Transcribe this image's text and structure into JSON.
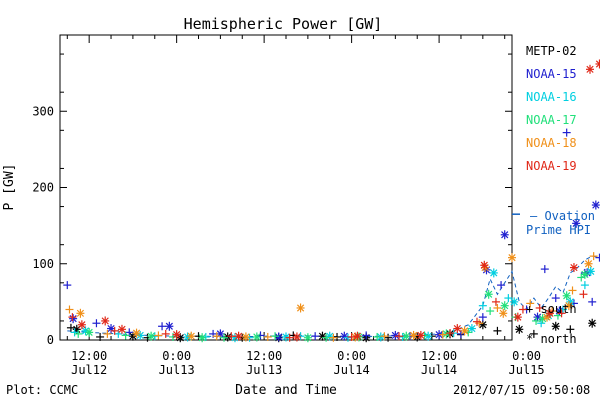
{
  "chart_data": {
    "type": "scatter",
    "title": "Hemispheric Power [GW]",
    "ylabel": "P [GW]",
    "xlabel": "Date and Time",
    "xrange_hours": [
      8,
      70
    ],
    "ylim": [
      0,
      400
    ],
    "yticks": [
      0,
      100,
      200,
      300
    ],
    "xticks": [
      {
        "hours": 12,
        "label1": "12:00",
        "label2": "Jul12"
      },
      {
        "hours": 24,
        "label1": "0:00",
        "label2": "Jul13"
      },
      {
        "hours": 36,
        "label1": "12:00",
        "label2": "Jul13"
      },
      {
        "hours": 48,
        "label1": "0:00",
        "label2": "Jul14"
      },
      {
        "hours": 60,
        "label1": "12:00",
        "label2": "Jul14"
      },
      {
        "hours": 72,
        "label1": "0:00",
        "label2": "Jul15"
      }
    ],
    "series": [
      {
        "name": "METP-02",
        "color": "#000000",
        "south": [
          [
            9.5,
            16
          ],
          [
            13.5,
            4
          ],
          [
            20.0,
            3
          ],
          [
            27.0,
            5
          ],
          [
            33.0,
            3
          ],
          [
            40.0,
            6
          ],
          [
            46.0,
            4
          ],
          [
            53.0,
            3
          ],
          [
            59.0,
            5
          ],
          [
            63.0,
            7
          ],
          [
            68.0,
            12
          ],
          [
            73.0,
            8
          ],
          [
            78.0,
            14
          ]
        ],
        "north": [
          [
            10.3,
            14
          ],
          [
            18.0,
            5
          ],
          [
            24.5,
            3
          ],
          [
            31.0,
            4
          ],
          [
            38.0,
            3
          ],
          [
            44.0,
            5
          ],
          [
            50.0,
            3
          ],
          [
            57.0,
            4
          ],
          [
            61.5,
            8
          ],
          [
            66.0,
            20
          ],
          [
            71.0,
            14
          ],
          [
            76.0,
            18
          ],
          [
            81.0,
            22
          ]
        ]
      },
      {
        "name": "NOAA-15",
        "color": "#1f1fcf",
        "south": [
          [
            9.0,
            72
          ],
          [
            13.0,
            22
          ],
          [
            17.5,
            10
          ],
          [
            22.0,
            18
          ],
          [
            29.0,
            8
          ],
          [
            35.5,
            6
          ],
          [
            43.0,
            5
          ],
          [
            50.0,
            6
          ],
          [
            56.0,
            5
          ],
          [
            63.0,
            8
          ],
          [
            66.0,
            30
          ],
          [
            68.5,
            72
          ],
          [
            72.0,
            40
          ],
          [
            74.5,
            93
          ],
          [
            76.0,
            55
          ],
          [
            77.5,
            272
          ],
          [
            78.5,
            48
          ],
          [
            80.0,
            88
          ],
          [
            81.0,
            50
          ],
          [
            82.0,
            108
          ]
        ],
        "north": [
          [
            9.8,
            28
          ],
          [
            15.0,
            15
          ],
          [
            23.0,
            18
          ],
          [
            30.0,
            8
          ],
          [
            38.0,
            4
          ],
          [
            47.0,
            5
          ],
          [
            54.0,
            6
          ],
          [
            60.0,
            7
          ],
          [
            66.5,
            92
          ],
          [
            69.0,
            138
          ],
          [
            73.5,
            30
          ],
          [
            76.5,
            38
          ],
          [
            78.8,
            153
          ],
          [
            80.3,
            88
          ],
          [
            81.5,
            177
          ]
        ]
      },
      {
        "name": "NOAA-16",
        "color": "#00cfe0",
        "south": [
          [
            10.0,
            10
          ],
          [
            16.0,
            8
          ],
          [
            21.0,
            5
          ],
          [
            28.0,
            4
          ],
          [
            34.0,
            3
          ],
          [
            41.0,
            5
          ],
          [
            47.5,
            3
          ],
          [
            55.0,
            4
          ],
          [
            62.0,
            9
          ],
          [
            66.0,
            45
          ],
          [
            69.5,
            55
          ],
          [
            74.0,
            22
          ],
          [
            77.0,
            40
          ],
          [
            80.0,
            72
          ]
        ],
        "north": [
          [
            11.5,
            12
          ],
          [
            19.0,
            6
          ],
          [
            25.5,
            4
          ],
          [
            32.0,
            3
          ],
          [
            39.0,
            4
          ],
          [
            45.0,
            5
          ],
          [
            52.0,
            4
          ],
          [
            58.5,
            5
          ],
          [
            64.5,
            15
          ],
          [
            67.5,
            88
          ],
          [
            70.3,
            50
          ],
          [
            75.0,
            32
          ],
          [
            78.0,
            50
          ],
          [
            80.8,
            90
          ]
        ]
      },
      {
        "name": "NOAA-17",
        "color": "#20e07a",
        "south": [
          [
            10.5,
            8
          ],
          [
            17.0,
            6
          ],
          [
            23.5,
            4
          ],
          [
            30.5,
            3
          ],
          [
            37.5,
            5
          ],
          [
            44.5,
            3
          ],
          [
            51.5,
            4
          ],
          [
            58.0,
            6
          ],
          [
            64.0,
            10
          ],
          [
            67.0,
            38
          ],
          [
            70.5,
            30
          ],
          [
            73.3,
            25
          ],
          [
            76.3,
            32
          ],
          [
            79.5,
            82
          ]
        ],
        "north": [
          [
            12.0,
            10
          ],
          [
            20.5,
            5
          ],
          [
            27.5,
            3
          ],
          [
            35.0,
            4
          ],
          [
            42.0,
            3
          ],
          [
            49.0,
            4
          ],
          [
            55.5,
            5
          ],
          [
            61.0,
            8
          ],
          [
            66.8,
            60
          ],
          [
            69.0,
            45
          ],
          [
            74.2,
            28
          ],
          [
            77.5,
            58
          ],
          [
            80.0,
            86
          ]
        ]
      },
      {
        "name": "NOAA-18",
        "color": "#f0901a",
        "south": [
          [
            9.3,
            40
          ],
          [
            14.5,
            8
          ],
          [
            21.5,
            6
          ],
          [
            29.5,
            5
          ],
          [
            36.5,
            4
          ],
          [
            45.5,
            3
          ],
          [
            52.5,
            5
          ],
          [
            60.5,
            7
          ],
          [
            65.5,
            22
          ],
          [
            68.0,
            42
          ],
          [
            72.5,
            48
          ],
          [
            75.5,
            38
          ],
          [
            78.3,
            65
          ],
          [
            81.2,
            110
          ]
        ],
        "north": [
          [
            10.8,
            35
          ],
          [
            18.5,
            9
          ],
          [
            26.0,
            5
          ],
          [
            33.5,
            4
          ],
          [
            41.0,
            42
          ],
          [
            48.5,
            4
          ],
          [
            56.5,
            6
          ],
          [
            63.5,
            12
          ],
          [
            66.3,
            95
          ],
          [
            68.8,
            35
          ],
          [
            70.0,
            108
          ],
          [
            74.8,
            30
          ],
          [
            77.8,
            45
          ],
          [
            80.5,
            100
          ]
        ]
      },
      {
        "name": "NOAA-19",
        "color": "#e02818",
        "south": [
          [
            9.7,
            30
          ],
          [
            15.5,
            12
          ],
          [
            22.5,
            8
          ],
          [
            31.5,
            5
          ],
          [
            39.5,
            3
          ],
          [
            48.0,
            4
          ],
          [
            54.5,
            5
          ],
          [
            61.5,
            9
          ],
          [
            65.2,
            24
          ],
          [
            67.8,
            50
          ],
          [
            71.5,
            40
          ],
          [
            73.8,
            42
          ],
          [
            76.8,
            35
          ],
          [
            79.8,
            60
          ]
        ],
        "north": [
          [
            11.0,
            20
          ],
          [
            14.2,
            25
          ],
          [
            16.5,
            14
          ],
          [
            24.0,
            7
          ],
          [
            32.5,
            5
          ],
          [
            40.5,
            4
          ],
          [
            48.8,
            5
          ],
          [
            57.5,
            6
          ],
          [
            62.5,
            15
          ],
          [
            66.2,
            98
          ],
          [
            70.8,
            30
          ],
          [
            75.2,
            35
          ],
          [
            78.5,
            95
          ],
          [
            80.7,
            355
          ],
          [
            82.0,
            362
          ]
        ]
      }
    ],
    "ovation": {
      "label1": "— Ovation",
      "label2": "Prime HPI",
      "color": "#1060c0",
      "marker_y": 165,
      "x": [
        9,
        12,
        16,
        20,
        24,
        28,
        32,
        36,
        40,
        44,
        48,
        52,
        56,
        60,
        62,
        64,
        66,
        67,
        68,
        69,
        70,
        71,
        72,
        73,
        74,
        75,
        76,
        77,
        78,
        79,
        80,
        81,
        82
      ],
      "y": [
        12,
        10,
        8,
        6,
        5,
        5,
        4,
        5,
        6,
        5,
        4,
        5,
        6,
        8,
        12,
        20,
        45,
        80,
        60,
        75,
        90,
        50,
        40,
        55,
        42,
        55,
        70,
        62,
        88,
        95,
        105,
        110,
        108
      ]
    },
    "legend": {
      "south_label": "+ south",
      "north_label": "* north"
    }
  },
  "footer": {
    "left": "Plot: CCMC",
    "timestamp": "2012/07/15 09:50:08"
  }
}
